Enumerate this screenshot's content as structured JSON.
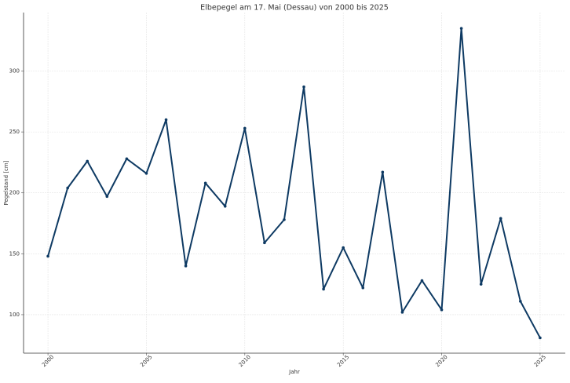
{
  "chart_data": {
    "type": "line",
    "title": "Elbepegel am 17. Mai (Dessau) von 2000 bis 2025",
    "x_label": "Jahr",
    "y_label": "Pegelstand [cm]",
    "x": [
      2000,
      2001,
      2002,
      2003,
      2004,
      2005,
      2006,
      2007,
      2008,
      2009,
      2010,
      2011,
      2012,
      2013,
      2014,
      2015,
      2016,
      2017,
      2018,
      2019,
      2020,
      2021,
      2022,
      2023,
      2024,
      2025
    ],
    "series": [
      {
        "name": "Pegelstand",
        "color": "#0e3a63",
        "values": [
          148,
          204,
          226,
          197,
          228,
          216,
          260,
          140,
          208,
          189,
          253,
          159,
          178,
          287,
          121,
          155,
          122,
          217,
          102,
          128,
          104,
          335,
          125,
          179,
          111,
          81
        ]
      }
    ],
    "xlim": [
      1998.76,
      2026.28
    ],
    "xticks": [
      2000,
      2005,
      2010,
      2015,
      2020,
      2025
    ],
    "ylim": [
      68.4,
      348
    ],
    "yticks": [
      100,
      150,
      200,
      250,
      300
    ],
    "grid": true
  }
}
